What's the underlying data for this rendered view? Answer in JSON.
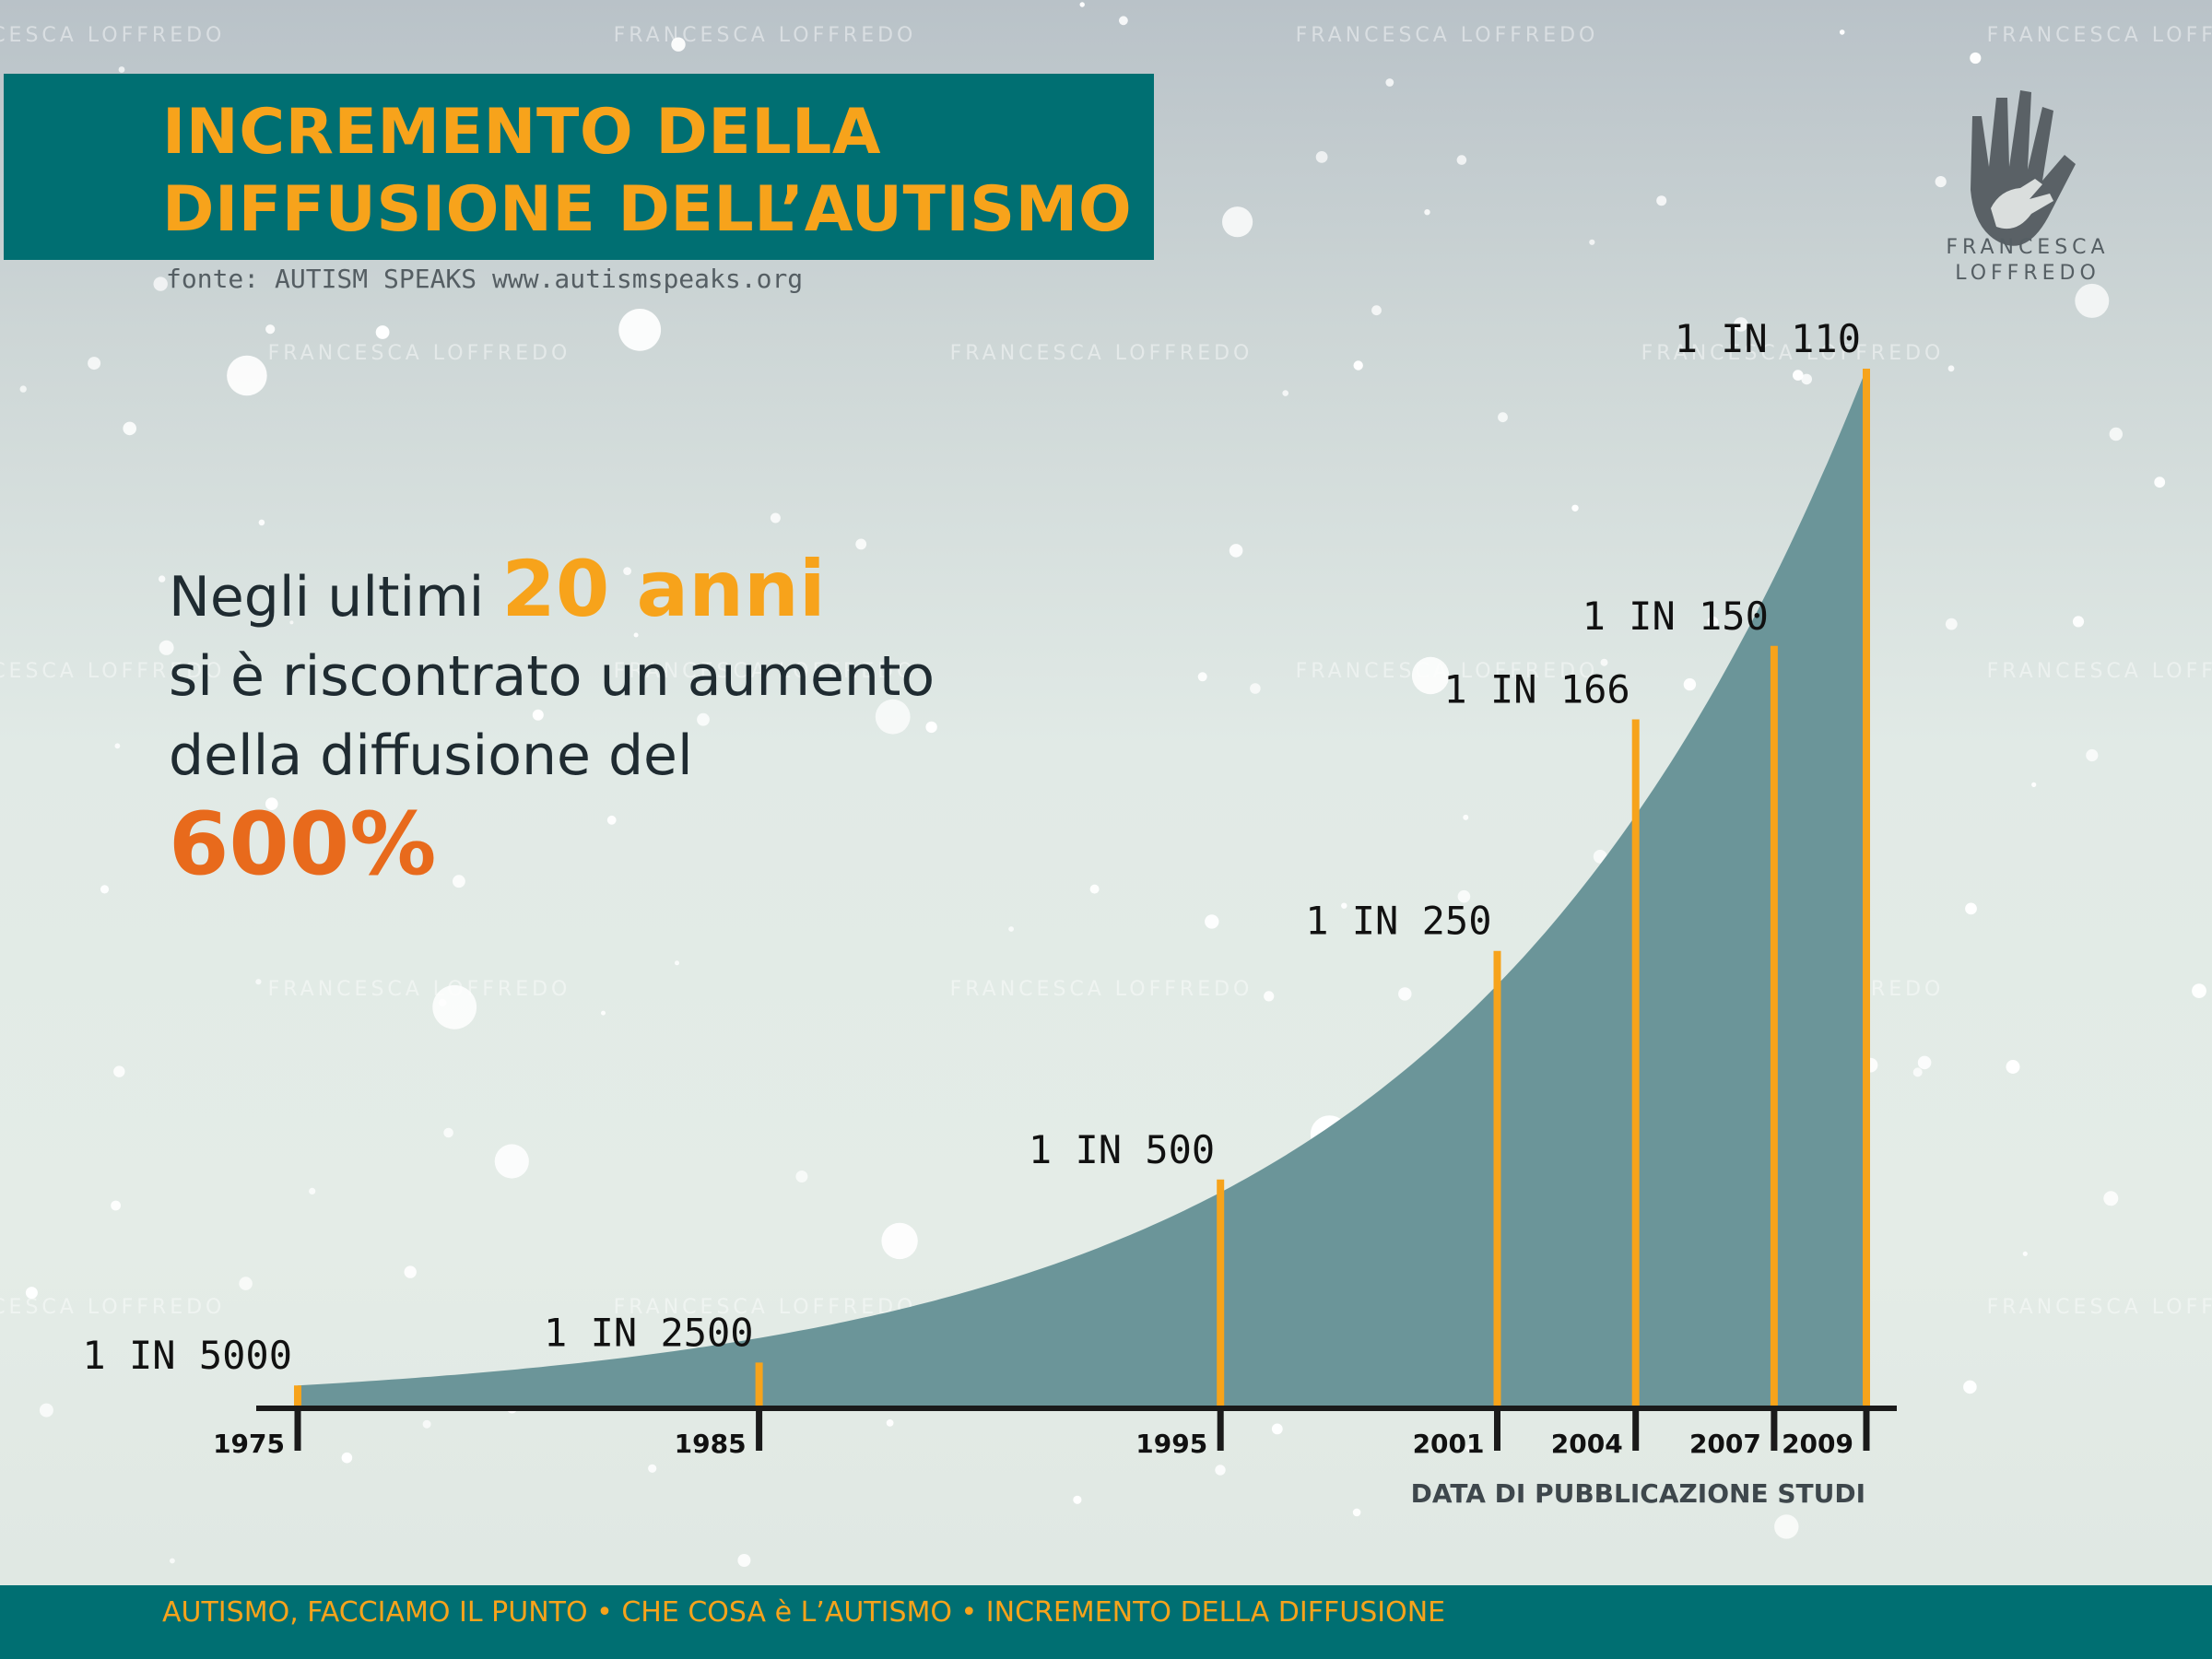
{
  "header": {
    "title_line_1": "INCREMENTO DELLA",
    "title_line_2": "DIFFUSIONE DELL’AUTISMO",
    "source": "fonte: AUTISM SPEAKS www.autismspeaks.org"
  },
  "brand": {
    "name_line_1": "FRANCESCA",
    "name_line_2": "LOFFREDO",
    "logo_icon": "hands-icon",
    "watermark_text": "FRANCESCA LOFFREDO"
  },
  "headline": {
    "line_1_before": "Negli ultimi ",
    "line_1_highlight": "20 anni",
    "line_2": "si è riscontrato un aumento",
    "line_3": "della diffusione del",
    "line_4": "600%"
  },
  "chart_data": {
    "type": "area",
    "title": "",
    "xlabel": "DATA DI PUBBLICAZIONE STUDI",
    "ylabel": "",
    "x": [
      1975,
      1985,
      1995,
      2001,
      2004,
      2007,
      2009
    ],
    "x_tick_labels": [
      "1975",
      "1985",
      "1995",
      "2001",
      "2004",
      "2007",
      "2009"
    ],
    "series": [
      {
        "values": [
          5000,
          2500,
          500,
          250,
          166,
          150,
          110
        ],
        "data_labels": [
          "1 IN 5000",
          "1 IN 2500",
          "1 IN 500",
          "1 IN 250",
          "1 IN 166",
          "1 IN 150",
          "1 IN 110"
        ]
      }
    ],
    "grid": false,
    "legend": "none",
    "colors": {
      "area": "#6b9599",
      "stem": "#f7a31b",
      "axis": "#1a1a1a"
    }
  },
  "footer": {
    "text": "AUTISMO, FACCIAMO IL PUNTO • CHE COSA è L’AUTISMO • INCREMENTO DELLA DIFFUSIONE"
  },
  "colors": {
    "teal": "#006f72",
    "orange": "#f7a31b",
    "deep_orange": "#e86a1c",
    "text_dark": "#1f2b31"
  }
}
